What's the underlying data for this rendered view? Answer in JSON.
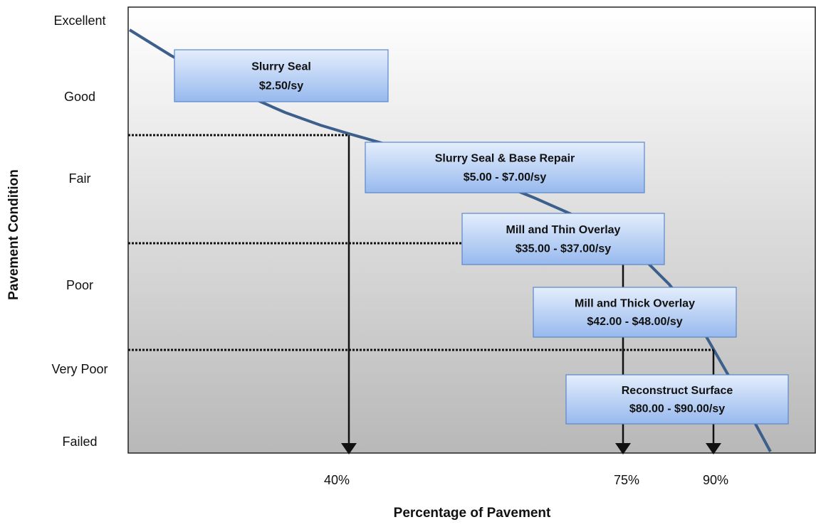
{
  "y_axis": {
    "title": "Pavement Condition",
    "labels": [
      "Excellent",
      "Good",
      "Fair",
      "Poor",
      "Very Poor",
      "Failed"
    ]
  },
  "x_axis": {
    "title": "Percentage of Pavement",
    "labels": [
      "40%",
      "75%",
      "90%"
    ]
  },
  "boxes": [
    {
      "title": "Slurry Seal",
      "cost": "$2.50/sy"
    },
    {
      "title": "Slurry Seal & Base Repair",
      "cost": "$5.00 - $7.00/sy"
    },
    {
      "title": "Mill and Thin Overlay",
      "cost": "$35.00 - $37.00/sy"
    },
    {
      "title": "Mill and Thick Overlay",
      "cost": "$42.00 - $48.00/sy"
    },
    {
      "title": "Reconstruct Surface",
      "cost": "$80.00 - $90.00/sy"
    }
  ]
}
